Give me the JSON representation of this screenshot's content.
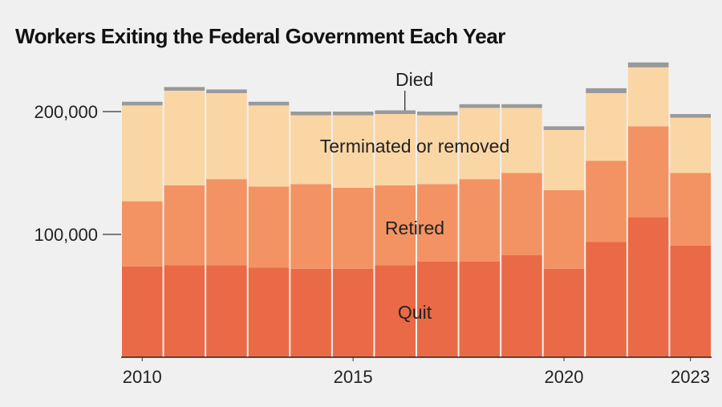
{
  "chart_data": {
    "type": "bar",
    "stacked": true,
    "title": "Workers Exiting the Federal Government Each Year",
    "categories": [
      "2010",
      "2011",
      "2012",
      "2013",
      "2014",
      "2015",
      "2016",
      "2017",
      "2018",
      "2019",
      "2020",
      "2021",
      "2022",
      "2023"
    ],
    "series": [
      {
        "name": "Quit",
        "color": "#ea6a47",
        "values": [
          74000,
          75000,
          75000,
          73000,
          72000,
          72000,
          75000,
          78000,
          78000,
          83000,
          72000,
          94000,
          114000,
          91000
        ]
      },
      {
        "name": "Retired",
        "color": "#f39363",
        "values": [
          53000,
          65000,
          70000,
          66000,
          69000,
          66000,
          65000,
          63000,
          67000,
          67000,
          64000,
          66000,
          74000,
          59000
        ]
      },
      {
        "name": "Terminated or removed",
        "color": "#fad6a5",
        "values": [
          78000,
          77000,
          70000,
          66000,
          56000,
          59000,
          58000,
          56000,
          58000,
          53000,
          49000,
          55000,
          48000,
          45000
        ]
      },
      {
        "name": "Died",
        "color": "#999999",
        "values": [
          3000,
          3000,
          3000,
          3000,
          3000,
          3000,
          3000,
          3000,
          3000,
          3000,
          3000,
          4000,
          4000,
          3000
        ]
      }
    ],
    "ylim": [
      0,
      250000
    ],
    "yticks": [
      100000,
      200000
    ],
    "ytick_labels": [
      "100,000",
      "200,000"
    ],
    "xtick_labels": [
      {
        "index": 0,
        "label": "2010"
      },
      {
        "index": 5,
        "label": "2015"
      },
      {
        "index": 10,
        "label": "2020"
      },
      {
        "index": 13,
        "label": "2023"
      }
    ],
    "annotations": {
      "died": "Died",
      "terminated": "Terminated or removed",
      "retired": "Retired",
      "quit": "Quit"
    },
    "grid": false,
    "legend": "inline labels"
  }
}
